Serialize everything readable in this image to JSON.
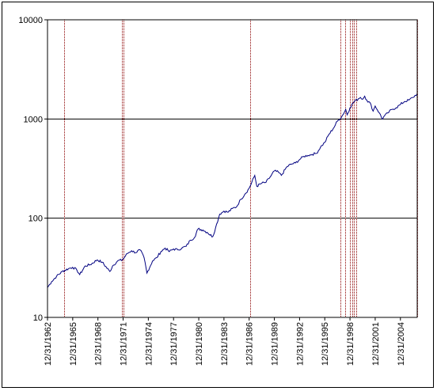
{
  "chart_data": {
    "type": "line",
    "title": "",
    "xlabel": "",
    "ylabel": "",
    "y_scale": "log",
    "ylim": [
      10,
      10000
    ],
    "y_ticks": [
      10,
      100,
      1000,
      10000
    ],
    "y_tick_labels": [
      "10",
      "100",
      "1000",
      "10000"
    ],
    "xlim": [
      "1962-12-31",
      "2006-12-31"
    ],
    "x_ticks": [
      "1962-12-31",
      "1965-12-31",
      "1968-12-31",
      "1971-12-31",
      "1974-12-31",
      "1977-12-31",
      "1980-12-31",
      "1983-12-31",
      "1986-12-31",
      "1989-12-31",
      "1992-12-31",
      "1995-12-31",
      "1998-12-31",
      "2001-12-31",
      "2004-12-31"
    ],
    "x_tick_labels": [
      "12/31/1962",
      "12/31/1965",
      "12/31/1968",
      "12/31/1971",
      "12/31/1974",
      "12/31/1977",
      "12/31/1980",
      "12/31/1983",
      "12/31/1986",
      "12/31/1989",
      "12/31/1992",
      "12/31/1995",
      "12/31/1998",
      "12/31/2001",
      "12/31/2004"
    ],
    "grid": "horizontal major",
    "line_color": "#000080",
    "marker_color": "#8b0000",
    "series": [
      {
        "x": [
          "1962-12-31",
          "1963-06-30",
          "1964-01-31",
          "1964-09-30",
          "1965-06-30",
          "1965-12-31",
          "1966-06-30",
          "1966-10-31",
          "1967-06-30",
          "1968-01-31",
          "1968-11-30",
          "1969-06-30",
          "1970-05-31",
          "1970-09-30",
          "1971-04-30",
          "1971-11-30",
          "1972-06-30",
          "1972-12-31",
          "1973-06-30",
          "1973-12-31",
          "1974-06-30",
          "1974-10-31",
          "1975-06-30",
          "1975-12-31",
          "1976-06-30",
          "1976-12-31",
          "1977-06-30",
          "1977-12-31",
          "1978-06-30",
          "1978-12-31",
          "1979-06-30",
          "1979-12-31",
          "1980-06-30",
          "1980-11-30",
          "1981-06-30",
          "1981-12-31",
          "1982-08-31",
          "1982-12-31",
          "1983-06-30",
          "1983-12-31",
          "1984-06-30",
          "1984-12-31",
          "1985-06-30",
          "1985-12-31",
          "1986-06-30",
          "1986-12-31",
          "1987-08-31",
          "1987-11-30",
          "1988-06-30",
          "1988-12-31",
          "1989-06-30",
          "1989-12-31",
          "1990-06-30",
          "1990-10-31",
          "1991-06-30",
          "1991-12-31",
          "1992-06-30",
          "1992-12-31",
          "1993-06-30",
          "1993-12-31",
          "1994-06-30",
          "1994-12-31",
          "1995-06-30",
          "1995-12-31",
          "1996-06-30",
          "1996-12-31",
          "1997-06-30",
          "1997-12-31",
          "1998-06-30",
          "1998-08-31",
          "1998-12-31",
          "1999-06-30",
          "1999-12-31",
          "2000-03-31",
          "2000-06-30",
          "2000-09-30",
          "2000-12-31",
          "2001-06-30",
          "2001-09-30",
          "2001-12-31",
          "2002-06-30",
          "2002-10-31",
          "2002-12-31",
          "2003-06-30",
          "2003-12-31",
          "2004-06-30",
          "2004-12-31",
          "2005-06-30",
          "2005-12-31",
          "2006-06-30",
          "2006-12-31"
        ],
        "y": [
          20,
          23,
          26,
          29,
          31,
          32,
          30,
          27,
          33,
          34,
          38,
          36,
          29,
          33,
          37,
          38,
          44,
          47,
          45,
          48,
          40,
          28,
          37,
          40,
          46,
          50,
          46,
          49,
          48,
          50,
          52,
          60,
          64,
          78,
          76,
          72,
          65,
          80,
          110,
          118,
          115,
          125,
          130,
          155,
          175,
          200,
          270,
          210,
          225,
          230,
          260,
          300,
          290,
          270,
          330,
          350,
          360,
          390,
          420,
          430,
          440,
          450,
          520,
          580,
          700,
          800,
          950,
          1050,
          1250,
          1100,
          1300,
          1500,
          1600,
          1650,
          1580,
          1700,
          1550,
          1400,
          1200,
          1350,
          1150,
          1000,
          1050,
          1150,
          1250,
          1300,
          1400,
          1500,
          1550,
          1650,
          1800
        ]
      }
    ],
    "event_lines": [
      "1964-12-31",
      "1971-10-31",
      "1971-12-31",
      "1987-01-31",
      "1997-10-31",
      "1998-05-31",
      "1998-12-31",
      "1999-03-31",
      "1999-06-30",
      "1999-09-30",
      "2006-12-31"
    ]
  }
}
